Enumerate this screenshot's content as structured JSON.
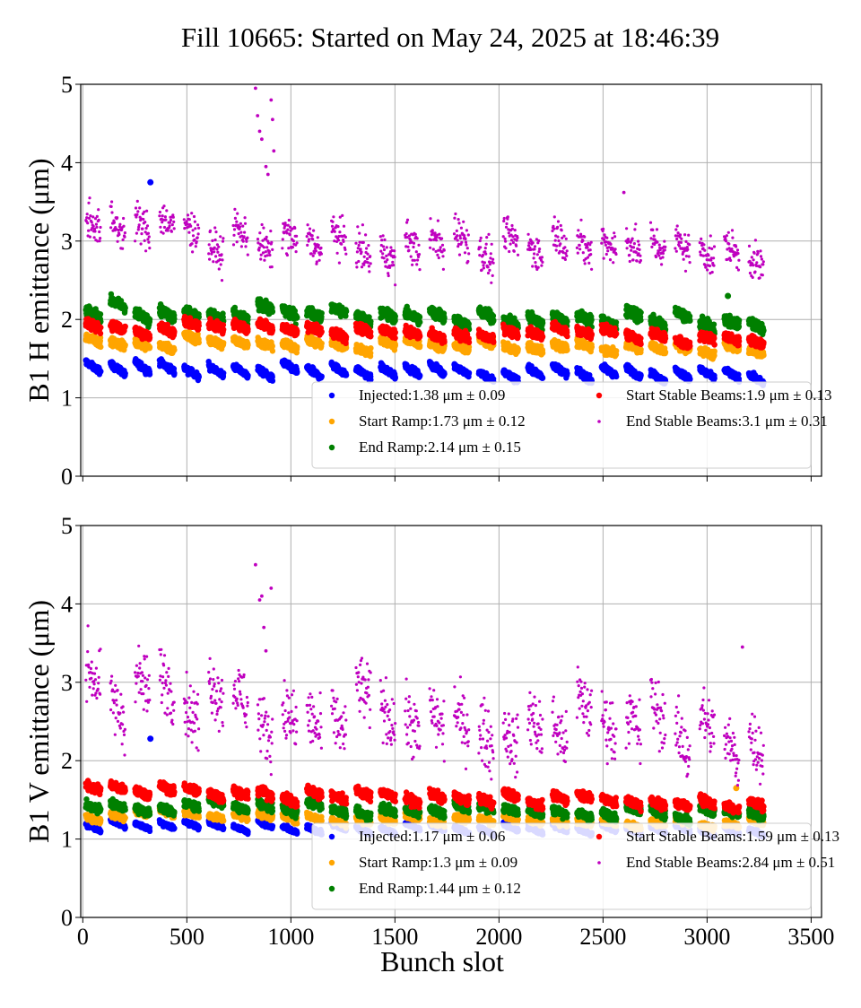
{
  "chart_data": [
    {
      "type": "scatter",
      "title": "Fill 10665: Started on May 24, 2025 at 18:46:39",
      "ylabel": "B1 H emittance (μm)",
      "xlabel": "",
      "xlim": [
        -10,
        3550
      ],
      "ylim": [
        0,
        5
      ],
      "xticks": [
        0,
        500,
        1000,
        1500,
        2000,
        2500,
        3000,
        3500
      ],
      "yticks": [
        0,
        1,
        2,
        3,
        4,
        5
      ],
      "x_tick_labels_visible": false,
      "grid": true,
      "legend_position": "lower-right",
      "legend_columns": 2,
      "series": [
        {
          "name": "Injected",
          "label": "Injected:1.38 μm ± 0.09",
          "mean": 1.38,
          "std": 0.09,
          "color": "#0000ff",
          "marker_size": 3.2,
          "outliers": [
            [
              325,
              3.75
            ]
          ]
        },
        {
          "name": "Start Ramp",
          "label": "Start Ramp:1.73 μm ± 0.12",
          "mean": 1.73,
          "std": 0.12,
          "color": "#ffa500",
          "marker_size": 3.2,
          "outliers": []
        },
        {
          "name": "End Ramp",
          "label": "End Ramp:2.14 μm ± 0.15",
          "mean": 2.14,
          "std": 0.15,
          "color": "#008000",
          "marker_size": 3.2,
          "outliers": [
            [
              3100,
              2.3
            ]
          ]
        },
        {
          "name": "Start Stable Beams",
          "label": "Start Stable Beams:1.9 μm ± 0.13",
          "mean": 1.9,
          "std": 0.13,
          "color": "#ff0000",
          "marker_size": 3.2,
          "outliers": []
        },
        {
          "name": "End Stable Beams",
          "label": "End Stable Beams:3.1 μm ± 0.31",
          "mean": 3.1,
          "std": 0.31,
          "color": "#bf00bf",
          "marker_size": 1.6,
          "outliers": [
            [
              830,
              4.95
            ],
            [
              840,
              4.6
            ],
            [
              850,
              4.4
            ],
            [
              860,
              4.3
            ],
            [
              880,
              3.95
            ],
            [
              890,
              3.85
            ],
            [
              905,
              4.8
            ],
            [
              912,
              4.55
            ],
            [
              918,
              4.15
            ],
            [
              2600,
              3.62
            ]
          ]
        }
      ]
    },
    {
      "type": "scatter",
      "ylabel": "B1 V emittance (μm)",
      "xlabel": "Bunch slot",
      "xlim": [
        -10,
        3550
      ],
      "ylim": [
        0,
        5
      ],
      "xticks": [
        0,
        500,
        1000,
        1500,
        2000,
        2500,
        3000,
        3500
      ],
      "yticks": [
        0,
        1,
        2,
        3,
        4,
        5
      ],
      "x_tick_labels_visible": true,
      "grid": true,
      "legend_position": "lower-right",
      "legend_columns": 2,
      "series": [
        {
          "name": "Injected",
          "label": "Injected:1.17 μm ± 0.06",
          "mean": 1.17,
          "std": 0.06,
          "color": "#0000ff",
          "marker_size": 3.2,
          "outliers": [
            [
              325,
              2.28
            ]
          ]
        },
        {
          "name": "Start Ramp",
          "label": "Start Ramp:1.3 μm ± 0.09",
          "mean": 1.3,
          "std": 0.09,
          "color": "#ffa500",
          "marker_size": 3.2,
          "outliers": [
            [
              3140,
              1.65
            ]
          ]
        },
        {
          "name": "End Ramp",
          "label": "End Ramp:1.44 μm ± 0.12",
          "mean": 1.44,
          "std": 0.12,
          "color": "#008000",
          "marker_size": 3.2,
          "outliers": []
        },
        {
          "name": "Start Stable Beams",
          "label": "Start Stable Beams:1.59 μm ± 0.13",
          "mean": 1.59,
          "std": 0.13,
          "color": "#ff0000",
          "marker_size": 3.2,
          "outliers": []
        },
        {
          "name": "End Stable Beams",
          "label": "End Stable Beams:2.84 μm ± 0.51",
          "mean": 2.84,
          "std": 0.51,
          "color": "#bf00bf",
          "marker_size": 1.6,
          "outliers": [
            [
              830,
              4.5
            ],
            [
              850,
              4.05
            ],
            [
              860,
              4.1
            ],
            [
              870,
              3.7
            ],
            [
              880,
              3.4
            ],
            [
              905,
              4.2
            ],
            [
              3170,
              3.45
            ]
          ]
        }
      ]
    }
  ]
}
